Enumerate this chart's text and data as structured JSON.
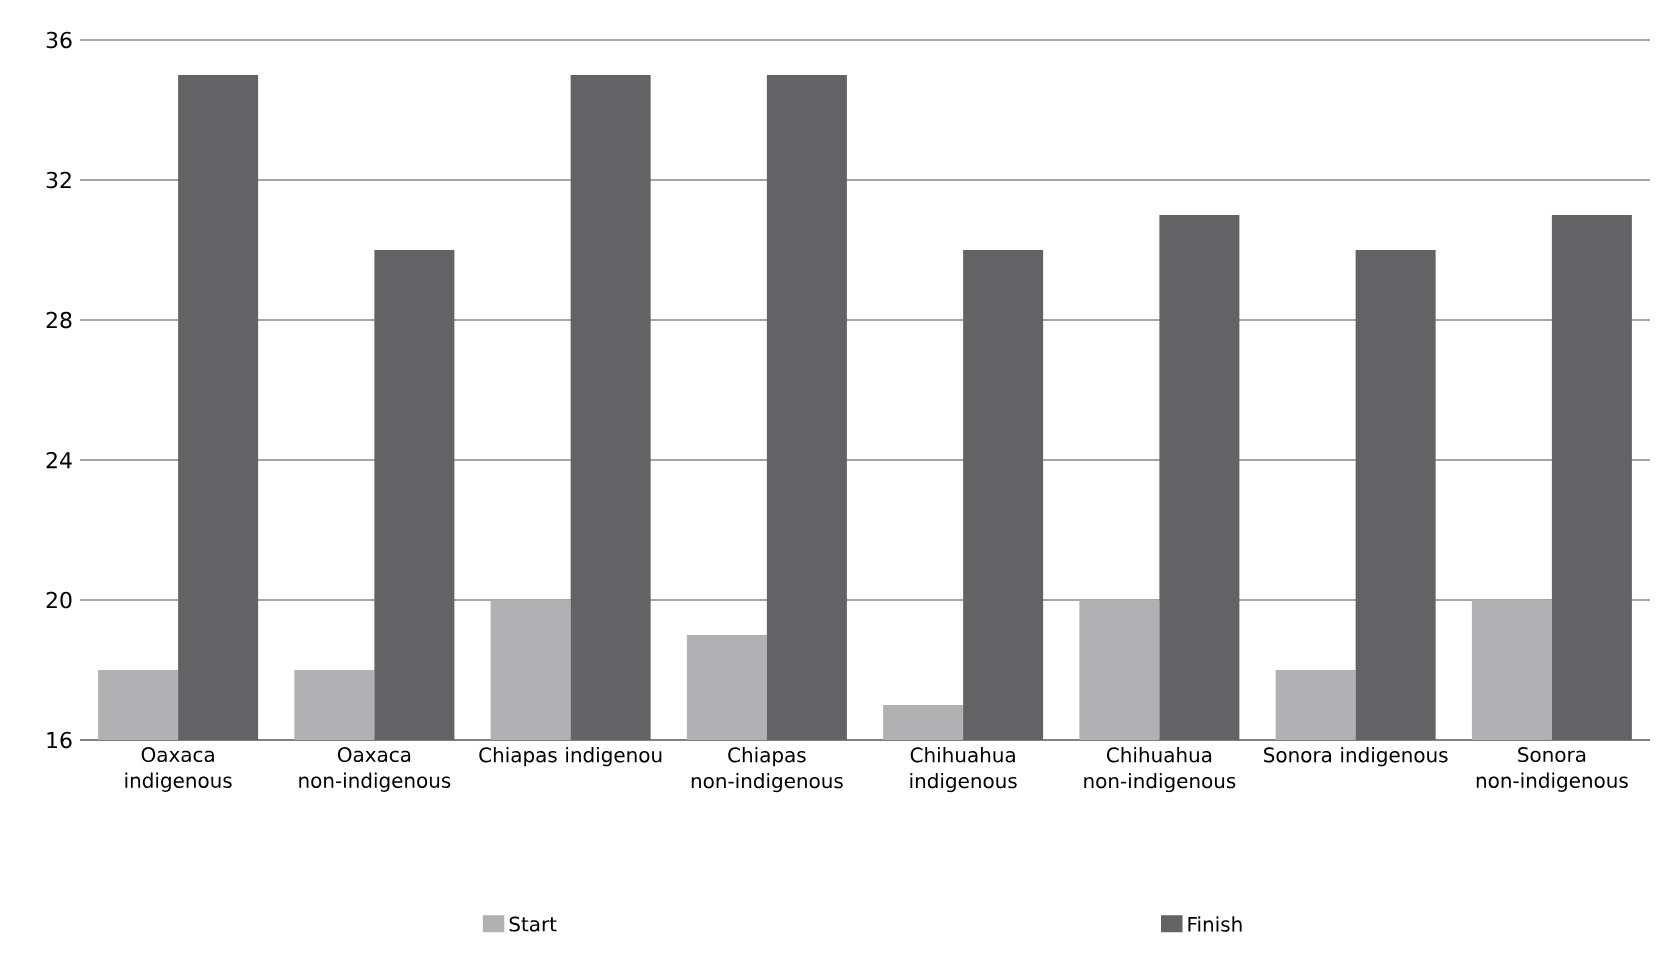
{
  "chart_data": {
    "type": "bar",
    "categories": [
      "Oaxaca indigenous",
      "Oaxaca non-indigenous",
      "Chiapas indigenou",
      "Chiapas non-indigenous",
      "Chihuahua indigenous",
      "Chihuahua non-indigenous",
      "Sonora indigenous",
      "Sonora non-indigenous"
    ],
    "series": [
      {
        "name": "Start",
        "color": "#b1b1b3",
        "values": [
          18,
          18,
          20,
          19,
          17,
          20,
          18,
          20
        ]
      },
      {
        "name": "Finish",
        "color": "#636365",
        "values": [
          35,
          30,
          35,
          35,
          30,
          31,
          30,
          31
        ]
      }
    ],
    "ylim": [
      16,
      36
    ],
    "yticks": [
      16,
      20,
      24,
      28,
      32,
      36
    ],
    "grid": "y",
    "legend": "bottom"
  }
}
